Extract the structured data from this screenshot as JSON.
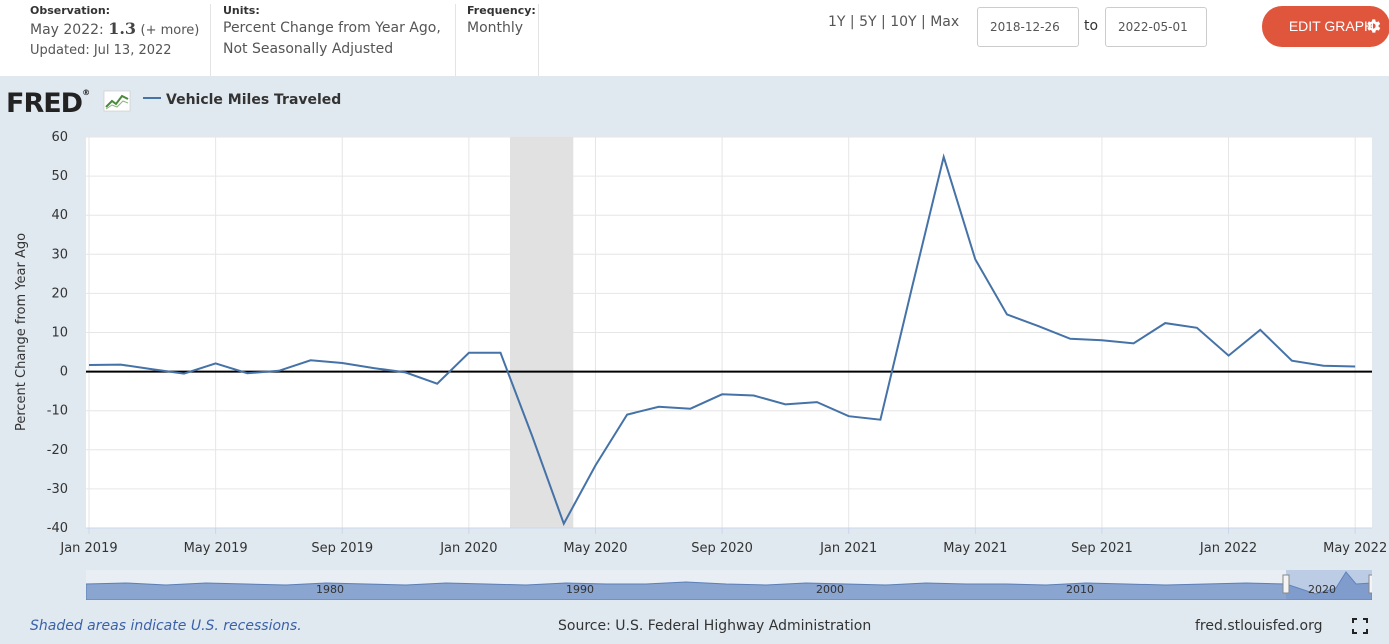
{
  "header": {
    "observation_label": "Observation:",
    "observation_period": "May 2022:",
    "observation_value": "1.3",
    "observation_more": "(+ more)",
    "updated": "Updated: Jul 13, 2022",
    "units_label": "Units:",
    "units_line1": "Percent Change from Year Ago,",
    "units_line2": "Not Seasonally Adjusted",
    "frequency_label": "Frequency:",
    "frequency_value": "Monthly",
    "range_1y": "1Y",
    "range_5y": "5Y",
    "range_10y": "10Y",
    "range_max": "Max",
    "separator": "|",
    "start_date": "2018-12-26",
    "to_label": "to",
    "end_date": "2022-05-01",
    "edit_button": "EDIT GRAPH"
  },
  "brand": {
    "logo_text": "FRED",
    "logo_mark": "®",
    "site": "fred.stlouisfed.org"
  },
  "colors": {
    "series": "#4572a7",
    "recession": "#e1e1e1",
    "button": "#e0563c",
    "background": "#e1e9f0"
  },
  "chart_data": {
    "type": "line",
    "title": "",
    "legend": "Vehicle Miles Traveled",
    "ylabel": "Percent Change from Year Ago",
    "xlabel": "",
    "ylim": [
      -40,
      60
    ],
    "yticks": [
      60,
      50,
      40,
      30,
      20,
      10,
      0,
      -10,
      -20,
      -30,
      -40
    ],
    "xlim_months": [
      0,
      40.5
    ],
    "xticks": [
      {
        "m": 0,
        "label": "Jan 2019"
      },
      {
        "m": 4,
        "label": "May 2019"
      },
      {
        "m": 8,
        "label": "Sep 2019"
      },
      {
        "m": 12,
        "label": "Jan 2020"
      },
      {
        "m": 16,
        "label": "May 2020"
      },
      {
        "m": 20,
        "label": "Sep 2020"
      },
      {
        "m": 24,
        "label": "Jan 2021"
      },
      {
        "m": 28,
        "label": "May 2021"
      },
      {
        "m": 32,
        "label": "Sep 2021"
      },
      {
        "m": 36,
        "label": "Jan 2022"
      },
      {
        "m": 40,
        "label": "May 2022"
      }
    ],
    "recession": {
      "start_month": 13.3,
      "end_month": 15.3
    },
    "series": [
      {
        "name": "Vehicle Miles Traveled",
        "x_months": [
          0,
          1,
          2,
          3,
          4,
          5,
          6,
          7,
          8,
          9,
          10,
          11,
          12,
          13,
          14,
          15,
          16,
          17,
          18,
          19,
          20,
          21,
          22,
          23,
          24,
          25,
          26,
          27,
          28,
          29,
          30,
          31,
          32,
          33,
          34,
          35,
          36,
          37,
          38,
          39,
          40
        ],
        "values": [
          1.7,
          1.8,
          0.6,
          -0.5,
          2.1,
          -0.4,
          0.2,
          2.9,
          2.2,
          0.9,
          -0.2,
          -3.1,
          4.8,
          4.8,
          -16.5,
          -38.9,
          -24.0,
          -11.0,
          -9.0,
          -9.5,
          -5.8,
          -6.1,
          -8.4,
          -7.8,
          -11.4,
          -12.3,
          21.5,
          54.9,
          28.7,
          14.6,
          11.6,
          8.4,
          8.0,
          7.2,
          12.4,
          11.2,
          4.1,
          10.7,
          2.8,
          1.5,
          1.3
        ]
      }
    ]
  },
  "navigator": {
    "labels": [
      "1980",
      "1990",
      "2000",
      "2010",
      "2020"
    ]
  },
  "footer": {
    "recession_note": "Shaded areas indicate U.S. recessions.",
    "source": "Source: U.S. Federal Highway Administration"
  }
}
